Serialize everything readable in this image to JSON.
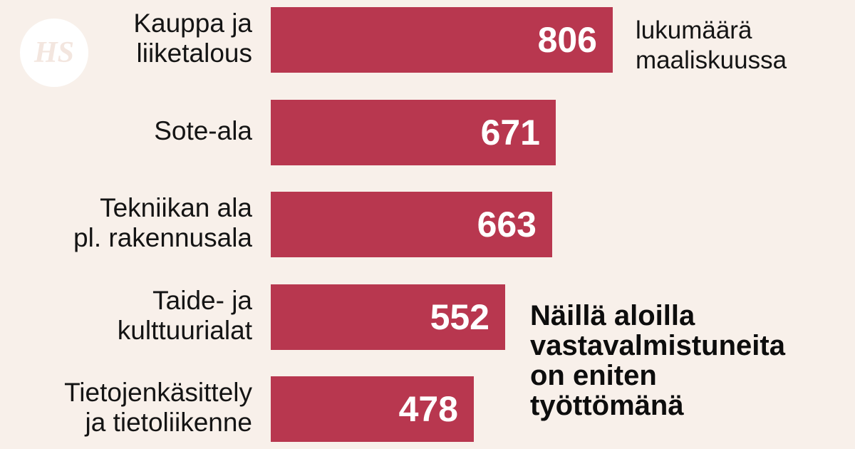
{
  "logo_text": "HS",
  "colors": {
    "background": "#f8f0ea",
    "bar": "#b8374f",
    "bar_value_text": "#ffffff",
    "text": "#141414"
  },
  "chart_data": {
    "type": "bar",
    "orientation": "horizontal",
    "title": "Näillä aloilla\nvastavalmistuneita\non eniten\ntyöttömänä",
    "unit_label": "lukumäärä\nmaaliskuussa",
    "categories": [
      "Kauppa ja\nliiketalous",
      "Sote-ala",
      "Tekniikan ala\npl. rakennusala",
      "Taide- ja\nkulttuurialat",
      "Tietojenkäsittely\nja tietoliikenne"
    ],
    "values": [
      806,
      671,
      663,
      552,
      478
    ],
    "value_labels": [
      "806",
      "671",
      "663",
      "552",
      "478"
    ],
    "xlim": [
      0,
      806
    ],
    "grid": false,
    "legend": "none"
  }
}
